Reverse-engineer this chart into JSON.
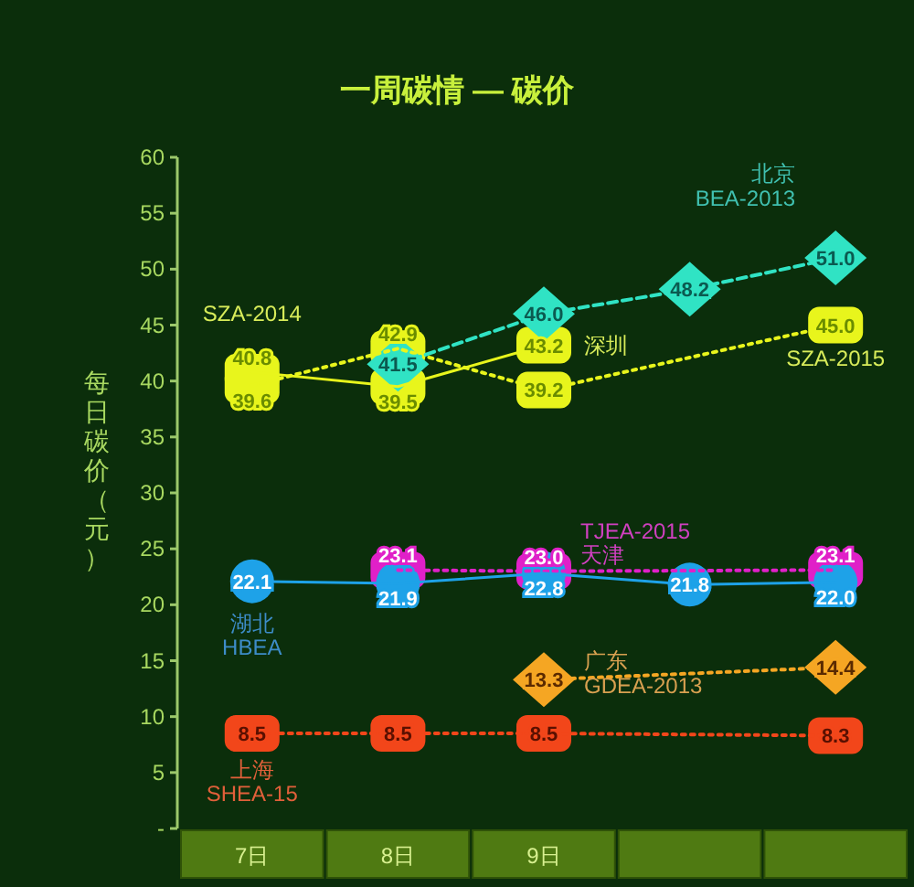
{
  "chart_data": {
    "type": "line",
    "title": "一周碳情 — 碳价",
    "ylabel": "每日碳价（元）",
    "categories": [
      "7日",
      "8日",
      "9日",
      null,
      null
    ],
    "ylim": [
      0,
      60
    ],
    "yticks": [
      {
        "value": 0,
        "label": "-"
      },
      5,
      10,
      15,
      20,
      25,
      30,
      35,
      40,
      45,
      50,
      55,
      60
    ],
    "grid": false,
    "annotations": [
      {
        "text": "深圳",
        "x": "9日",
        "y": 43.2
      }
    ],
    "series": [
      {
        "name": "SZA-2014",
        "color": "#e8f51c",
        "marker": "square",
        "line_style": "solid",
        "values": [
          40.8,
          39.5,
          43.2,
          null,
          null
        ],
        "value_labels": [
          "40.8",
          "39.5",
          "43.2",
          null,
          null
        ]
      },
      {
        "name": "SZA-2015",
        "color": "#e8f51c",
        "marker": "square",
        "line_style": "dotted",
        "values": [
          39.6,
          42.9,
          39.2,
          null,
          45.0
        ],
        "value_labels": [
          "39.6",
          "42.9",
          "39.2",
          null,
          "45.0"
        ]
      },
      {
        "name": "北京\nBEA-2013",
        "color": "#30e3c4",
        "marker": "diamond",
        "line_style": "dashed",
        "values": [
          null,
          41.5,
          46.0,
          48.2,
          51.0
        ],
        "value_labels": [
          null,
          "41.5",
          "46.0",
          "48.2",
          "51.0"
        ]
      },
      {
        "name": "TJEA-2015\n天津",
        "color": "#e020c8",
        "marker": "square",
        "line_style": "dotted",
        "values": [
          null,
          23.1,
          23.0,
          null,
          23.1
        ],
        "value_labels": [
          null,
          "23.1",
          "23.0",
          null,
          "23.1"
        ]
      },
      {
        "name": "湖北\nHBEA",
        "color": "#1ea2e8",
        "marker": "circle",
        "line_style": "solid",
        "values": [
          22.1,
          21.9,
          22.8,
          21.8,
          22.0
        ],
        "value_labels": [
          "22.1",
          "21.9",
          "22.8",
          "21.8",
          "22.0"
        ]
      },
      {
        "name": "广东\nGDEA-2013",
        "color": "#f5a623",
        "marker": "diamond",
        "line_style": "dotted",
        "values": [
          null,
          null,
          13.3,
          null,
          14.4
        ],
        "value_labels": [
          null,
          null,
          "13.3",
          null,
          "14.4"
        ]
      },
      {
        "name": "上海\nSHEA-15",
        "color": "#f2461a",
        "marker": "square",
        "line_style": "dotted",
        "values": [
          8.5,
          8.5,
          8.5,
          null,
          8.3
        ],
        "value_labels": [
          "8.5",
          "8.5",
          "8.5",
          null,
          "8.3"
        ]
      }
    ]
  }
}
